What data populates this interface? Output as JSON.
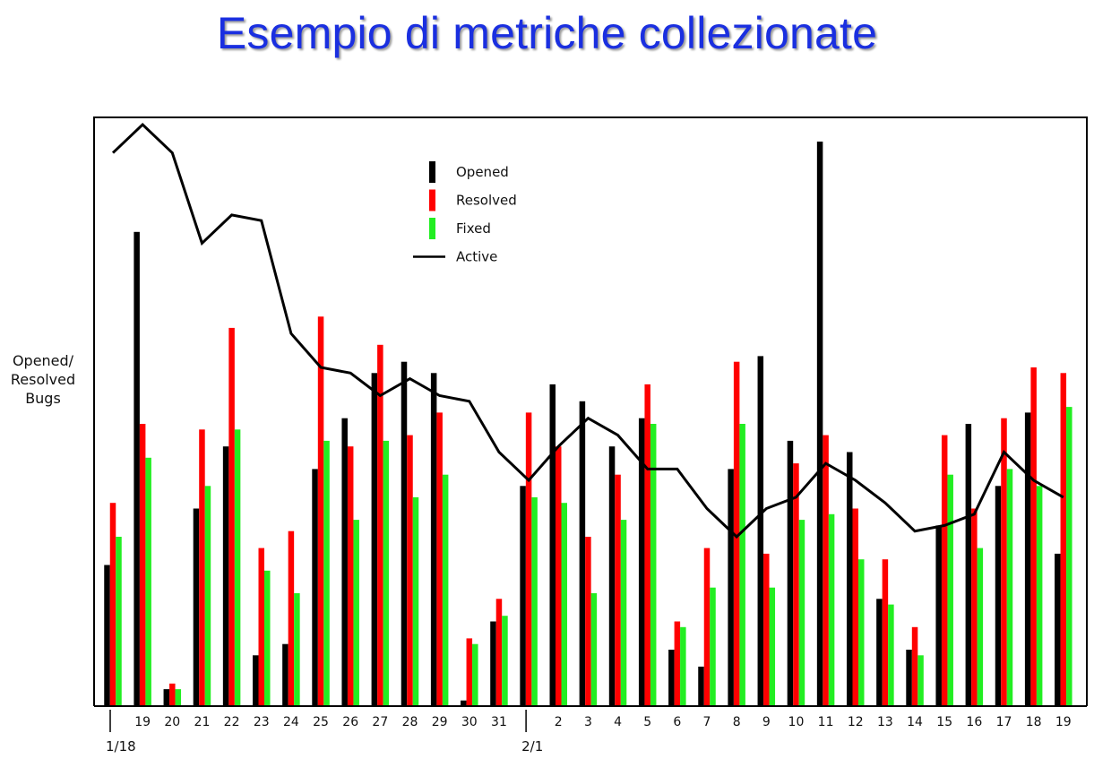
{
  "title": "Esempio di metriche collezionate",
  "chart_data": {
    "type": "bar",
    "title": "",
    "xlabel": "",
    "ylabel": "Opened/\nResolved\nBugs",
    "categories": [
      "1/18",
      "19",
      "20",
      "21",
      "22",
      "23",
      "24",
      "25",
      "26",
      "27",
      "28",
      "29",
      "30",
      "31",
      "2/1",
      "2",
      "3",
      "4",
      "5",
      "6",
      "7",
      "8",
      "9",
      "10",
      "11",
      "12",
      "13",
      "14",
      "15",
      "16",
      "17",
      "18",
      "19"
    ],
    "tick_labels": [
      "",
      "19",
      "20",
      "21",
      "22",
      "23",
      "24",
      "25",
      "26",
      "27",
      "28",
      "29",
      "30",
      "31",
      "",
      "2",
      "3",
      "4",
      "5",
      "6",
      "7",
      "8",
      "9",
      "10",
      "11",
      "12",
      "13",
      "14",
      "15",
      "16",
      "17",
      "18",
      "19"
    ],
    "date_markers": [
      {
        "index": 0,
        "label": "1/18"
      },
      {
        "index": 14,
        "label": "2/1"
      }
    ],
    "ylim": [
      0,
      100
    ],
    "grid": false,
    "legend_position": "top-center",
    "series": [
      {
        "name": "Opened",
        "kind": "bar",
        "color": "#000000",
        "values": [
          25,
          84,
          3,
          35,
          46,
          9,
          11,
          42,
          51,
          59,
          61,
          59,
          1,
          15,
          39,
          57,
          54,
          46,
          51,
          10,
          7,
          42,
          62,
          47,
          100,
          45,
          19,
          10,
          32,
          50,
          39,
          52,
          27
        ]
      },
      {
        "name": "Resolved",
        "kind": "bar",
        "color": "#ff0000",
        "values": [
          36,
          50,
          4,
          49,
          67,
          28,
          31,
          69,
          46,
          64,
          48,
          52,
          12,
          19,
          52,
          46,
          30,
          41,
          57,
          15,
          28,
          61,
          27,
          43,
          48,
          35,
          26,
          14,
          48,
          35,
          51,
          60,
          59
        ]
      },
      {
        "name": "Fixed",
        "kind": "bar",
        "color": "#22ee22",
        "values": [
          30,
          44,
          3,
          39,
          49,
          24,
          20,
          47,
          33,
          47,
          37,
          41,
          11,
          16,
          37,
          36,
          20,
          33,
          50,
          14,
          21,
          50,
          21,
          33,
          34,
          26,
          18,
          9,
          41,
          28,
          42,
          39,
          53
        ]
      },
      {
        "name": "Active",
        "kind": "line",
        "color": "#000000",
        "values": [
          98,
          103,
          98,
          82,
          87,
          86,
          66,
          60,
          59,
          55,
          58,
          55,
          54,
          45,
          40,
          46,
          51,
          48,
          42,
          42,
          35,
          30,
          35,
          37,
          43,
          40,
          36,
          31,
          32,
          34,
          45,
          40,
          37
        ]
      }
    ]
  }
}
